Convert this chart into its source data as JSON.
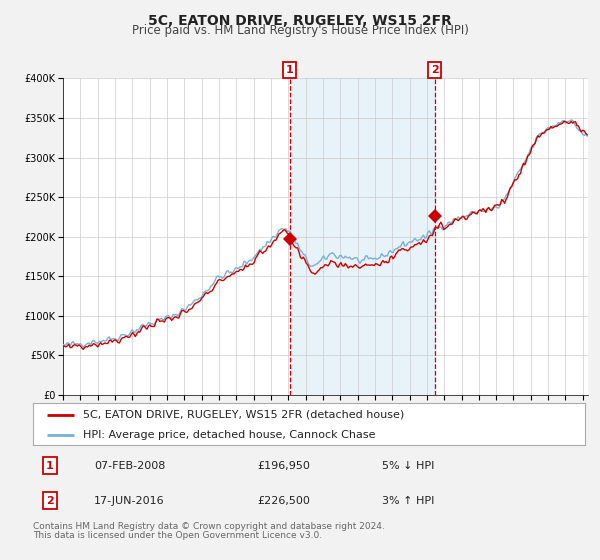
{
  "title": "5C, EATON DRIVE, RUGELEY, WS15 2FR",
  "subtitle": "Price paid vs. HM Land Registry's House Price Index (HPI)",
  "ylim": [
    0,
    400000
  ],
  "xlim_start": 1995.0,
  "xlim_end": 2025.3,
  "yticks": [
    0,
    50000,
    100000,
    150000,
    200000,
    250000,
    300000,
    350000,
    400000
  ],
  "ytick_labels": [
    "£0",
    "£50K",
    "£100K",
    "£150K",
    "£200K",
    "£250K",
    "£300K",
    "£350K",
    "£400K"
  ],
  "xticks": [
    1995,
    1996,
    1997,
    1998,
    1999,
    2000,
    2001,
    2002,
    2003,
    2004,
    2005,
    2006,
    2007,
    2008,
    2009,
    2010,
    2011,
    2012,
    2013,
    2014,
    2015,
    2016,
    2017,
    2018,
    2019,
    2020,
    2021,
    2022,
    2023,
    2024,
    2025
  ],
  "sale1_date": 2008.09,
  "sale1_price": 196950,
  "sale1_label": "1",
  "sale2_date": 2016.46,
  "sale2_price": 226500,
  "sale2_label": "2",
  "sale1_date_str": "07-FEB-2008",
  "sale2_date_str": "17-JUN-2016",
  "sale1_price_str": "£196,950",
  "sale2_price_str": "£226,500",
  "sale1_pct": "5% ↓ HPI",
  "sale2_pct": "3% ↑ HPI",
  "line_color_property": "#cc0000",
  "line_color_hpi": "#7ab0d4",
  "fill_color_hpi": "#daeaf5",
  "shading_start": 2008.09,
  "shading_end": 2016.46,
  "legend_label1": "5C, EATON DRIVE, RUGELEY, WS15 2FR (detached house)",
  "legend_label2": "HPI: Average price, detached house, Cannock Chase",
  "footnote1": "Contains HM Land Registry data © Crown copyright and database right 2024.",
  "footnote2": "This data is licensed under the Open Government Licence v3.0.",
  "background_color": "#f2f2f2",
  "plot_bg_color": "#ffffff",
  "title_fontsize": 10,
  "subtitle_fontsize": 8.5,
  "tick_fontsize": 7,
  "legend_fontsize": 8,
  "footnote_fontsize": 6.5,
  "table_fontsize": 8
}
